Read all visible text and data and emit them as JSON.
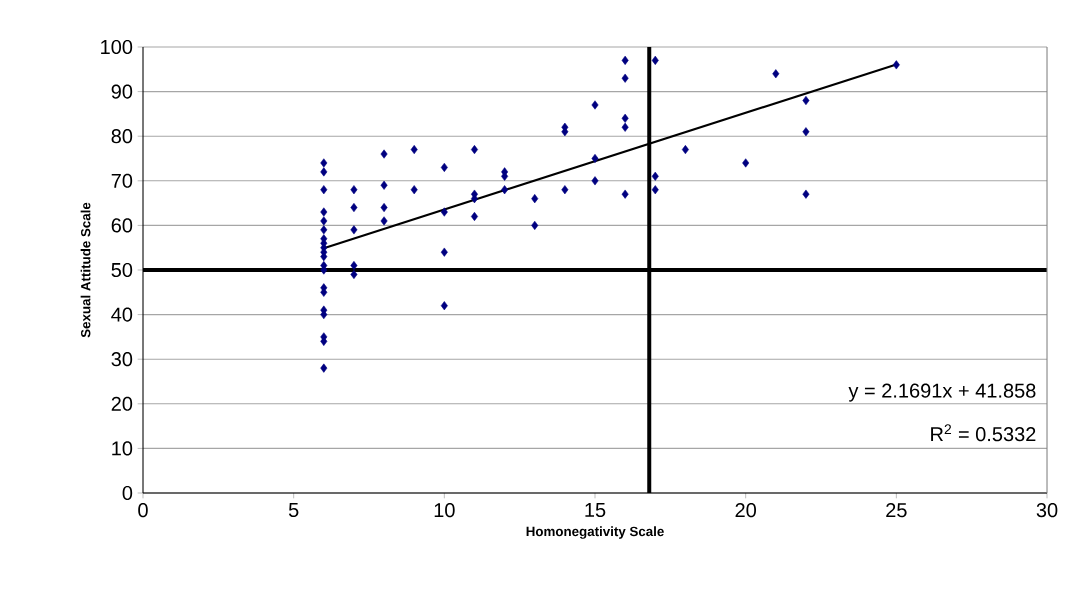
{
  "chart_data": {
    "type": "scatter",
    "xlabel": "Homonegativity Scale",
    "ylabel": "Sexual Attitude Scale",
    "xlim": [
      0,
      30
    ],
    "ylim": [
      0,
      100
    ],
    "xticks": [
      0,
      5,
      10,
      15,
      20,
      25,
      30
    ],
    "yticks": [
      0,
      10,
      20,
      30,
      40,
      50,
      60,
      70,
      80,
      90,
      100
    ],
    "grid": "y",
    "series": [
      {
        "marker": "diamond",
        "color": "#000080",
        "x": [
          6,
          6,
          6,
          6,
          6,
          6,
          6,
          6,
          6,
          6,
          6,
          6,
          6,
          6,
          6,
          6,
          6,
          6,
          6,
          6,
          7,
          7,
          7,
          7,
          7,
          8,
          8,
          8,
          8,
          9,
          9,
          10,
          10,
          10,
          10,
          11,
          11,
          11,
          11,
          12,
          12,
          12,
          13,
          13,
          14,
          14,
          14,
          15,
          15,
          15,
          16,
          16,
          16,
          16,
          16,
          17,
          17,
          17,
          18,
          20,
          21,
          22,
          22,
          22,
          25
        ],
        "values": [
          74,
          72,
          68,
          63,
          61,
          59,
          57,
          56,
          55,
          54,
          53,
          51,
          50,
          46,
          45,
          41,
          40,
          35,
          34,
          28,
          68,
          64,
          59,
          51,
          49,
          76,
          69,
          64,
          61,
          77,
          68,
          73,
          63,
          54,
          42,
          77,
          67,
          66,
          62,
          72,
          71,
          68,
          66,
          60,
          82,
          81,
          68,
          87,
          75,
          70,
          97,
          93,
          84,
          82,
          67,
          97,
          71,
          68,
          77,
          74,
          94,
          88,
          81,
          67,
          96
        ]
      },
      {
        "type": "line",
        "marker": "none",
        "color": "#000000",
        "line_style": "solid",
        "x": [
          6,
          25
        ],
        "values": [
          54.9,
          96.1
        ]
      }
    ],
    "ref_lines": [
      {
        "axis": "y",
        "value": 50,
        "color": "#000000"
      },
      {
        "axis": "x",
        "value": 16.8,
        "color": "#000000"
      }
    ],
    "annotations": [
      "y = 2.1691x + 41.858",
      "R$^{2}$ = 0.5332"
    ]
  }
}
